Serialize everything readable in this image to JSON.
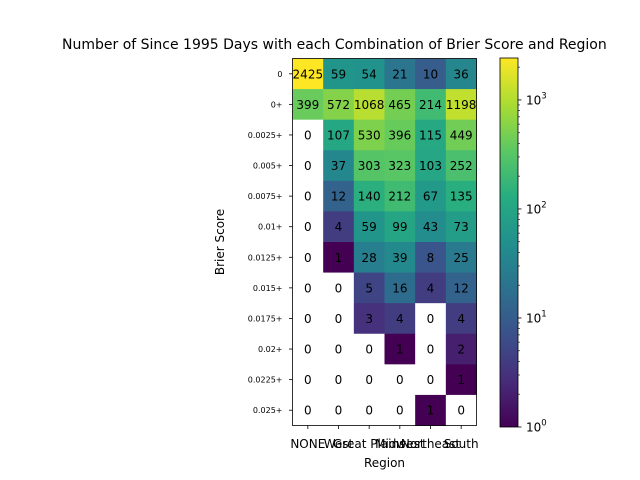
{
  "chart_data": {
    "type": "heatmap",
    "title": "Number of Since 1995 Days with each Combination of Brier Score and Region",
    "xlabel": "Region",
    "ylabel": "Brier Score",
    "x_categories": [
      "NONE",
      "West",
      "Great Plains",
      "Midwest",
      "Northeast",
      "South"
    ],
    "y_categories": [
      "0",
      "0+",
      "0.0025+",
      "0.005+",
      "0.0075+",
      "0.01+",
      "0.0125+",
      "0.015+",
      "0.0175+",
      "0.02+",
      "0.0225+",
      "0.025+"
    ],
    "values": [
      [
        2425,
        59,
        54,
        21,
        10,
        36
      ],
      [
        399,
        572,
        1068,
        465,
        214,
        1198
      ],
      [
        0,
        107,
        530,
        396,
        115,
        449
      ],
      [
        0,
        37,
        303,
        323,
        103,
        252
      ],
      [
        0,
        12,
        140,
        212,
        67,
        135
      ],
      [
        0,
        4,
        59,
        99,
        43,
        73
      ],
      [
        0,
        1,
        28,
        39,
        8,
        25
      ],
      [
        0,
        0,
        5,
        16,
        4,
        12
      ],
      [
        0,
        0,
        3,
        4,
        0,
        4
      ],
      [
        0,
        0,
        0,
        1,
        0,
        2
      ],
      [
        0,
        0,
        0,
        0,
        0,
        1
      ],
      [
        0,
        0,
        0,
        0,
        1,
        0
      ]
    ],
    "colormap": "viridis",
    "color_scale": "log",
    "colorbar_range": [
      1,
      2425
    ],
    "colorbar_ticks": [
      {
        "value": 1,
        "label": "10",
        "exp": "0"
      },
      {
        "value": 10,
        "label": "10",
        "exp": "1"
      },
      {
        "value": 100,
        "label": "10",
        "exp": "2"
      },
      {
        "value": 1000,
        "label": "10",
        "exp": "3"
      }
    ],
    "zero_color": "#ffffff"
  }
}
